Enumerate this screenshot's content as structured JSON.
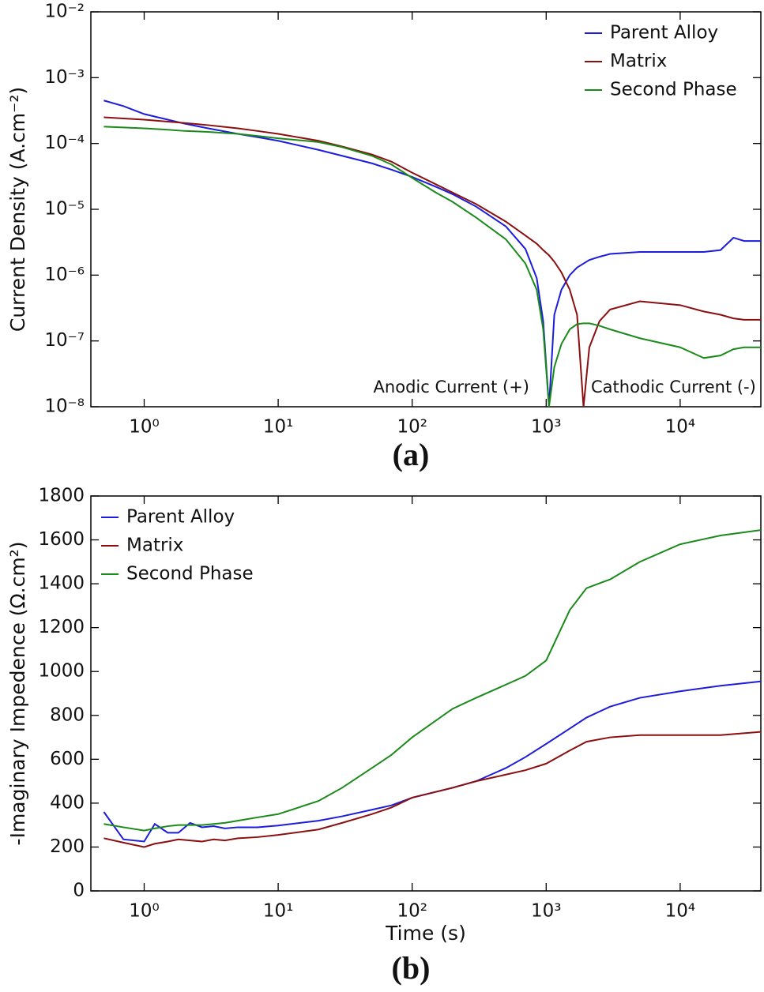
{
  "chart_data": [
    {
      "type": "line",
      "label": "(a)",
      "y_label": "Current Density (A.cm⁻²)",
      "xscale": "log",
      "yscale": "log",
      "legend": "upper right",
      "annotations": [
        "Anodic Current (+)",
        "Cathodic Current (-)"
      ],
      "xlim": [
        0.4,
        40000
      ],
      "ylim": [
        1e-08,
        0.01
      ],
      "xticks": [
        {
          "value": 1,
          "label": "10⁰"
        },
        {
          "value": 10,
          "label": "10¹"
        },
        {
          "value": 100,
          "label": "10²"
        },
        {
          "value": 1000,
          "label": "10³"
        },
        {
          "value": 10000,
          "label": "10⁴"
        }
      ],
      "yticks": [
        {
          "value": 1e-08,
          "label": "10⁻⁸"
        },
        {
          "value": 1e-07,
          "label": "10⁻⁷"
        },
        {
          "value": 1e-06,
          "label": "10⁻⁶"
        },
        {
          "value": 1e-05,
          "label": "10⁻⁵"
        },
        {
          "value": 0.0001,
          "label": "10⁻⁴"
        },
        {
          "value": 0.001,
          "label": "10⁻³"
        },
        {
          "value": 0.01,
          "label": "10⁻²"
        }
      ],
      "x": [
        0.5,
        0.7,
        1,
        1.5,
        2,
        3,
        5,
        7,
        10,
        20,
        30,
        50,
        70,
        100,
        150,
        200,
        300,
        500,
        700,
        850,
        950,
        1050,
        1150,
        1300,
        1500,
        1700,
        1900,
        2100,
        2500,
        3000,
        5000,
        10000,
        15000,
        20000,
        25000,
        30000,
        40000
      ],
      "series": [
        {
          "name": "Parent Alloy",
          "color": "#1c1cdc",
          "values": [
            0.00045,
            0.00037,
            0.00028,
            0.00023,
            0.0002,
            0.00017,
            0.00014,
            0.000125,
            0.00011,
            8e-05,
            6.5e-05,
            5e-05,
            4e-05,
            3.1e-05,
            2.2e-05,
            1.7e-05,
            1.1e-05,
            5.5e-06,
            2.5e-06,
            9e-07,
            2e-07,
            1e-08,
            2.5e-07,
            6e-07,
            1e-06,
            1.3e-06,
            1.5e-06,
            1.7e-06,
            1.9e-06,
            2.1e-06,
            2.25e-06,
            2.25e-06,
            2.25e-06,
            2.4e-06,
            3.7e-06,
            3.3e-06,
            3.3e-06
          ]
        },
        {
          "name": "Matrix",
          "color": "#8b0f0f",
          "values": [
            0.00025,
            0.00024,
            0.00023,
            0.000215,
            0.000205,
            0.00019,
            0.00017,
            0.000155,
            0.00014,
            0.00011,
            9e-05,
            6.8e-05,
            5.3e-05,
            3.6e-05,
            2.4e-05,
            1.8e-05,
            1.2e-05,
            6.5e-06,
            4e-06,
            3e-06,
            2.4e-06,
            2e-06,
            1.6e-06,
            1.1e-06,
            6e-07,
            2.5e-07,
            1e-08,
            8e-08,
            2e-07,
            3e-07,
            4e-07,
            3.5e-07,
            2.8e-07,
            2.5e-07,
            2.2e-07,
            2.1e-07,
            2.1e-07
          ]
        },
        {
          "name": "Second Phase",
          "color": "#1a8a1a",
          "values": [
            0.00018,
            0.000175,
            0.00017,
            0.000162,
            0.000155,
            0.00015,
            0.00014,
            0.00013,
            0.00012,
            0.000105,
            8.8e-05,
            6.5e-05,
            4.8e-05,
            3e-05,
            1.8e-05,
            1.3e-05,
            7.5e-06,
            3.5e-06,
            1.5e-06,
            6e-07,
            1.5e-07,
            1e-08,
            4e-08,
            9e-08,
            1.5e-07,
            1.8e-07,
            1.85e-07,
            1.85e-07,
            1.7e-07,
            1.5e-07,
            1.1e-07,
            8e-08,
            5.5e-08,
            6e-08,
            7.5e-08,
            8e-08,
            8e-08
          ]
        }
      ]
    },
    {
      "type": "line",
      "label": "(b)",
      "x_label": "Time (s)",
      "y_label": "-Imaginary Impedence (Ω.cm²)",
      "xscale": "log",
      "yscale": "linear",
      "legend": "upper left",
      "xlim": [
        0.4,
        40000
      ],
      "ylim": [
        0,
        1800
      ],
      "xticks": [
        {
          "value": 1,
          "label": "10⁰"
        },
        {
          "value": 10,
          "label": "10¹"
        },
        {
          "value": 100,
          "label": "10²"
        },
        {
          "value": 1000,
          "label": "10³"
        },
        {
          "value": 10000,
          "label": "10⁴"
        }
      ],
      "yticks": [
        0,
        200,
        400,
        600,
        800,
        1000,
        1200,
        1400,
        1600,
        1800
      ],
      "x": [
        0.5,
        0.7,
        1,
        1.2,
        1.5,
        1.8,
        2.2,
        2.7,
        3.3,
        4,
        5,
        7,
        10,
        20,
        30,
        50,
        70,
        100,
        200,
        300,
        500,
        700,
        1000,
        1500,
        2000,
        3000,
        5000,
        10000,
        20000,
        40000
      ],
      "series": [
        {
          "name": "Parent Alloy",
          "color": "#1c1cdc",
          "values": [
            360,
            235,
            225,
            305,
            265,
            265,
            310,
            290,
            295,
            285,
            290,
            290,
            298,
            320,
            340,
            370,
            390,
            425,
            470,
            500,
            560,
            610,
            670,
            740,
            790,
            840,
            880,
            910,
            935,
            955
          ]
        },
        {
          "name": "Matrix",
          "color": "#8b0f0f",
          "values": [
            240,
            220,
            200,
            215,
            225,
            235,
            230,
            225,
            235,
            230,
            240,
            245,
            255,
            280,
            310,
            350,
            380,
            425,
            470,
            500,
            530,
            550,
            580,
            640,
            680,
            700,
            710,
            710,
            710,
            725
          ]
        },
        {
          "name": "Second Phase",
          "color": "#1a8a1a",
          "values": [
            305,
            290,
            275,
            285,
            295,
            300,
            300,
            300,
            305,
            310,
            320,
            335,
            350,
            410,
            470,
            560,
            620,
            700,
            830,
            880,
            940,
            980,
            1050,
            1280,
            1380,
            1420,
            1500,
            1580,
            1620,
            1645
          ]
        }
      ]
    }
  ]
}
